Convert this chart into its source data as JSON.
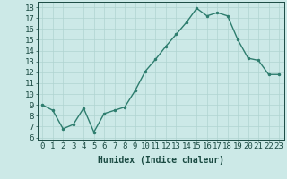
{
  "x": [
    0,
    1,
    2,
    3,
    4,
    5,
    6,
    7,
    8,
    9,
    10,
    11,
    12,
    13,
    14,
    15,
    16,
    17,
    18,
    19,
    20,
    21,
    22,
    23
  ],
  "y": [
    9.0,
    8.5,
    6.8,
    7.2,
    8.7,
    6.5,
    8.2,
    8.5,
    8.8,
    10.3,
    12.1,
    13.2,
    14.4,
    15.5,
    16.6,
    17.9,
    17.2,
    17.5,
    17.2,
    15.0,
    13.3,
    13.1,
    11.8,
    11.8
  ],
  "line_color": "#2e7d6e",
  "marker": ".",
  "marker_size": 3,
  "bg_color": "#cce9e7",
  "grid_color": "#b0d4d1",
  "xlabel": "Humidex (Indice chaleur)",
  "ylabel_ticks": [
    6,
    7,
    8,
    9,
    10,
    11,
    12,
    13,
    14,
    15,
    16,
    17,
    18
  ],
  "ylim": [
    5.8,
    18.5
  ],
  "xlim": [
    -0.5,
    23.5
  ],
  "title_color": "#1a4a42",
  "tick_color": "#1a4a42",
  "xlabel_fontsize": 7,
  "tick_fontsize": 6.5,
  "line_width": 1.0
}
